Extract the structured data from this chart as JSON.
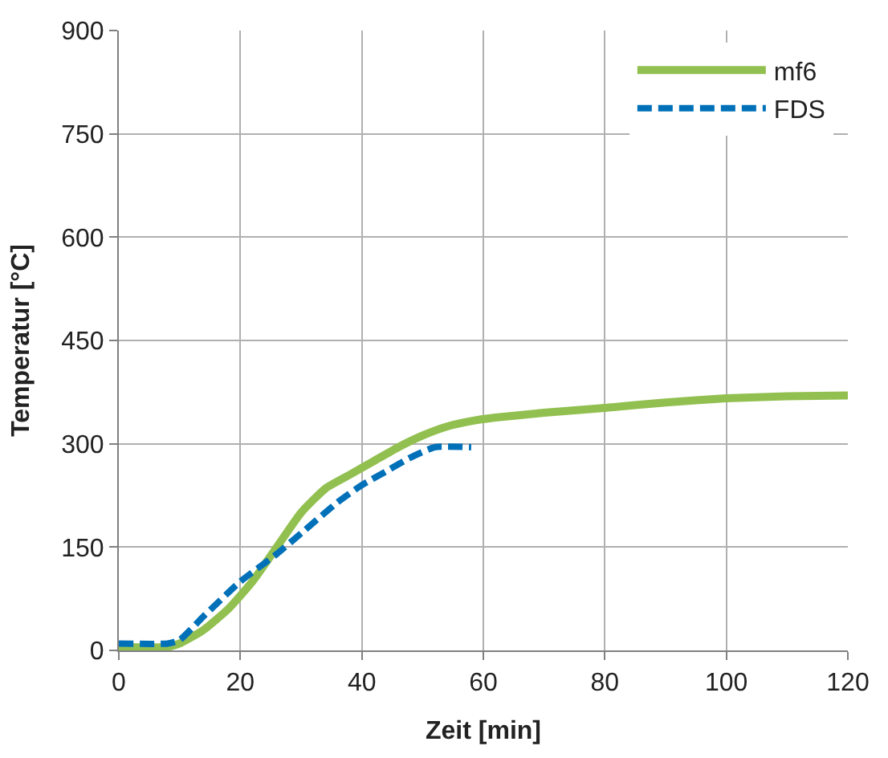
{
  "chart_data": {
    "type": "line",
    "xlabel": "Zeit [min]",
    "ylabel": "Temperatur [°C]",
    "xlim": [
      0,
      120
    ],
    "xticks": [
      0,
      20,
      40,
      60,
      80,
      100,
      120
    ],
    "ylim": [
      0,
      900
    ],
    "yticks": [
      0,
      150,
      300,
      450,
      600,
      750,
      900
    ],
    "grid": true,
    "legend": "top right",
    "marker": "none",
    "series": [
      {
        "name": "mf6",
        "color": "#92c050",
        "line_style": "solid",
        "x": [
          0,
          8,
          10,
          14,
          18,
          22,
          26,
          30,
          34,
          38,
          42,
          46,
          50,
          54,
          58,
          62,
          70,
          80,
          90,
          100,
          110,
          120
        ],
        "values": [
          5,
          5,
          10,
          30,
          60,
          100,
          150,
          200,
          235,
          255,
          275,
          295,
          312,
          325,
          333,
          338,
          345,
          352,
          360,
          366,
          369,
          370
        ]
      },
      {
        "name": "FDS",
        "color": "#0070b8",
        "line_style": "dashed",
        "x": [
          0,
          8,
          10,
          14,
          20,
          26,
          30,
          36,
          40,
          44,
          48,
          52,
          58
        ],
        "values": [
          10,
          10,
          15,
          50,
          100,
          140,
          170,
          215,
          240,
          260,
          280,
          295,
          295
        ]
      }
    ]
  }
}
